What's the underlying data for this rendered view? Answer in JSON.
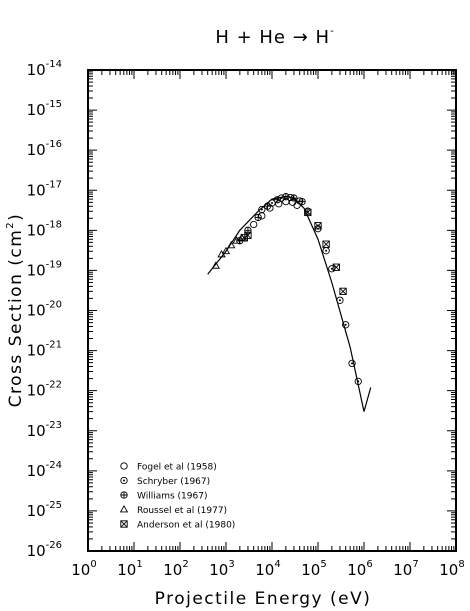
{
  "chart_data": {
    "type": "scatter",
    "title": "H + He → H⁻",
    "title_parts": {
      "main": "H + He → H",
      "sup": "-"
    },
    "xlabel": "Projectile Energy (eV)",
    "ylabel": "Cross Section (cm²)",
    "ylabel_parts": {
      "main": "Cross Section (cm",
      "sup": "2",
      "end": ")"
    },
    "xscale": "log",
    "yscale": "log",
    "xlim": [
      1,
      100000000
    ],
    "ylim": [
      1e-26,
      1e-14
    ],
    "grid": false,
    "legend_position": "bottom-left",
    "x_tick_labels": [
      {
        "base": "10",
        "exp": "0"
      },
      {
        "base": "10",
        "exp": "1"
      },
      {
        "base": "10",
        "exp": "2"
      },
      {
        "base": "10",
        "exp": "3"
      },
      {
        "base": "10",
        "exp": "4"
      },
      {
        "base": "10",
        "exp": "5"
      },
      {
        "base": "10",
        "exp": "6"
      },
      {
        "base": "10",
        "exp": "7"
      },
      {
        "base": "10",
        "exp": "8"
      }
    ],
    "y_tick_labels": [
      {
        "base": "10",
        "exp": "-14"
      },
      {
        "base": "10",
        "exp": "-15"
      },
      {
        "base": "10",
        "exp": "-16"
      },
      {
        "base": "10",
        "exp": "-17"
      },
      {
        "base": "10",
        "exp": "-18"
      },
      {
        "base": "10",
        "exp": "-19"
      },
      {
        "base": "10",
        "exp": "-20"
      },
      {
        "base": "10",
        "exp": "-21"
      },
      {
        "base": "10",
        "exp": "-22"
      },
      {
        "base": "10",
        "exp": "-23"
      },
      {
        "base": "10",
        "exp": "-24"
      },
      {
        "base": "10",
        "exp": "-25"
      },
      {
        "base": "10",
        "exp": "-26"
      }
    ],
    "fit_curve": {
      "x": [
        400,
        1000,
        2000,
        5000,
        10000,
        20000,
        30000,
        50000,
        100000,
        200000,
        500000,
        1000000,
        1400000
      ],
      "y": [
        8e-20,
        3e-19,
        1e-18,
        3e-18,
        6e-18,
        7e-18,
        6.5e-18,
        3.5e-18,
        6e-19,
        5e-20,
        1.2e-21,
        3e-23,
        1.2e-22
      ]
    },
    "series": [
      {
        "name": "Fogel et al (1958)",
        "marker": "circle",
        "x": [
          4000,
          6000,
          9000,
          14000,
          20000,
          28000,
          35000
        ],
        "y": [
          1.4e-18,
          2.3e-18,
          3.6e-18,
          4.6e-18,
          5.2e-18,
          5e-18,
          4.2e-18
        ]
      },
      {
        "name": "Schryber (1967)",
        "marker": "circle-dot",
        "x": [
          6000,
          10000,
          16000,
          25000,
          40000,
          60000,
          100000,
          150000,
          200000,
          300000,
          400000,
          550000,
          750000
        ],
        "y": [
          3.3e-18,
          4.8e-18,
          6.4e-18,
          6.6e-18,
          5.4e-18,
          3e-18,
          1.1e-18,
          3.1e-19,
          1.1e-19,
          1.8e-20,
          4.4e-21,
          4.8e-22,
          1.7e-22
        ]
      },
      {
        "name": "Williams (1967)",
        "marker": "circle-cross",
        "x": [
          2000,
          3000,
          5000,
          8000,
          13000,
          20000,
          30000,
          45000
        ],
        "y": [
          5.5e-19,
          1e-18,
          2.1e-18,
          4e-18,
          5.8e-18,
          6.9e-18,
          6.4e-18,
          5.2e-18
        ]
      },
      {
        "name": "Roussel et al (1977)",
        "marker": "triangle",
        "x": [
          600,
          800,
          1000,
          1300,
          1700,
          2200
        ],
        "y": [
          1.3e-19,
          2.5e-19,
          3e-19,
          4.2e-19,
          5.5e-19,
          6.5e-19
        ]
      },
      {
        "name": "Anderson et al (1980)",
        "marker": "square-cross",
        "x": [
          2500,
          3000,
          60000,
          100000,
          150000,
          250000,
          350000
        ],
        "y": [
          6.5e-19,
          7.5e-19,
          2.8e-18,
          1.3e-18,
          4.5e-19,
          1.2e-19,
          3e-20
        ]
      }
    ]
  }
}
